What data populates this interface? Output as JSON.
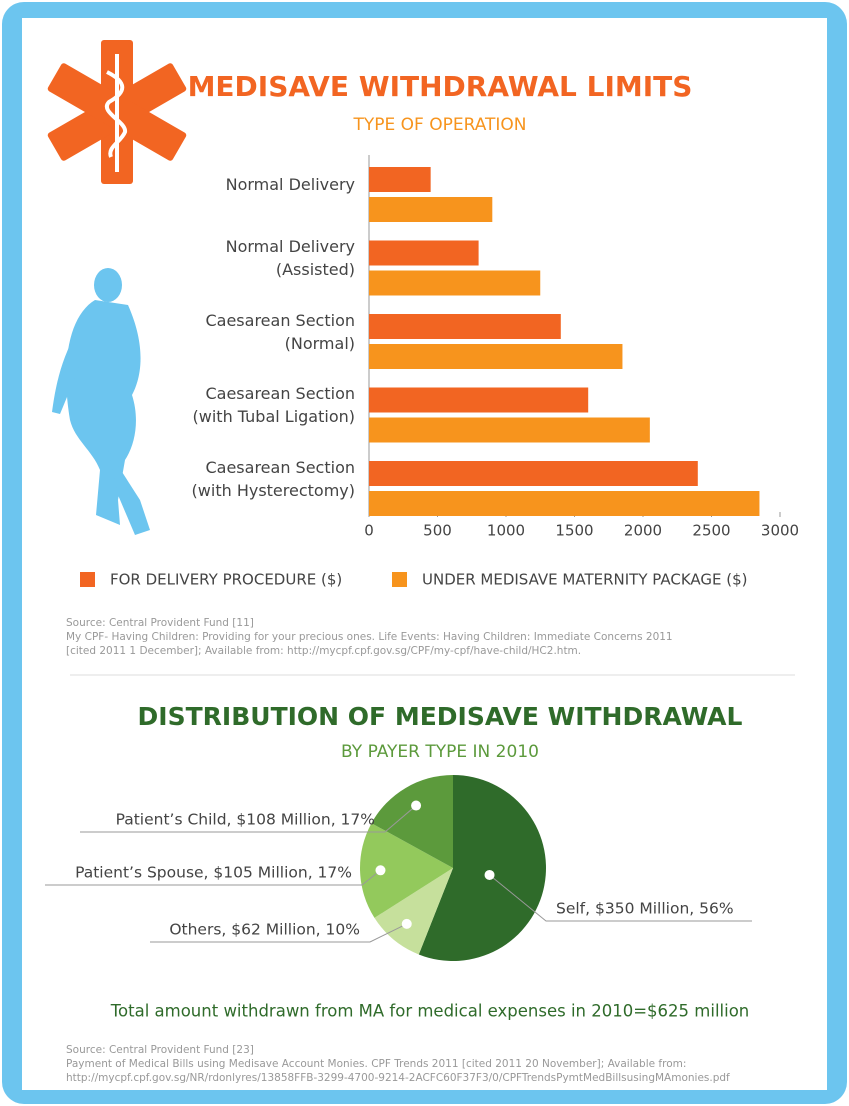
{
  "chart_data": [
    {
      "type": "barh",
      "title": "MEDISAVE WITHDRAWAL LIMITS",
      "subtitle": "TYPE OF OPERATION",
      "categories": [
        "Normal Delivery",
        "Normal Delivery\n(Assisted)",
        "Caesarean Section\n(Normal)",
        "Caesarean Section\n(with Tubal Ligation)",
        "Caesarean Section\n(with Hysterectomy)"
      ],
      "series": [
        {
          "name": "FOR DELIVERY PROCEDURE ($)",
          "color": "#f26522",
          "values": [
            450,
            800,
            1400,
            1600,
            2400
          ]
        },
        {
          "name": "UNDER MEDISAVE MATERNITY PACKAGE ($)",
          "color": "#f7941d",
          "values": [
            900,
            1250,
            1850,
            2050,
            2850
          ]
        }
      ],
      "xlim": [
        0,
        3000
      ],
      "xticks": [
        0,
        500,
        1000,
        1500,
        2000,
        2500,
        3000
      ],
      "legend": "bottom",
      "source_lines": [
        "Source: Central Provident Fund [11]",
        "My CPF- Having Children: Providing for your precious ones. Life Events: Having Children: Immediate Concerns 2011",
        "[cited 2011 1 December]; Available from: http://mycpf.cpf.gov.sg/CPF/my-cpf/have-child/HC2.htm."
      ]
    },
    {
      "type": "pie",
      "title": "DISTRIBUTION OF MEDISAVE WITHDRAWAL",
      "subtitle": "BY PAYER TYPE IN 2010",
      "values": [
        56,
        10,
        17,
        17
      ],
      "value_labels": [
        "Self, $350 Million, 56%",
        "Others, $62 Million, 10%",
        "Patient’s Spouse, $105 Million, 17%",
        "Patient’s Child, $108 Million, 17%"
      ],
      "colors": [
        "#2f6b2a",
        "#c6e09c",
        "#93c95c",
        "#5c9a3c"
      ],
      "annotation": "Total amount withdrawn from MA for medical expenses in 2010=$625 million",
      "source_lines": [
        "Source: Central Provident Fund [23]",
        "Payment of Medical Bills using Medisave Account Monies. CPF Trends 2011  [cited 2011 20 November]; Available from:",
        "http://mycpf.cpf.gov.sg/NR/rdonlyres/13858FFB-3299-4700-9214-2ACFC60F37F3/0/CPFTrendsPymtMedBillsusingMAmonies.pdf"
      ]
    }
  ]
}
